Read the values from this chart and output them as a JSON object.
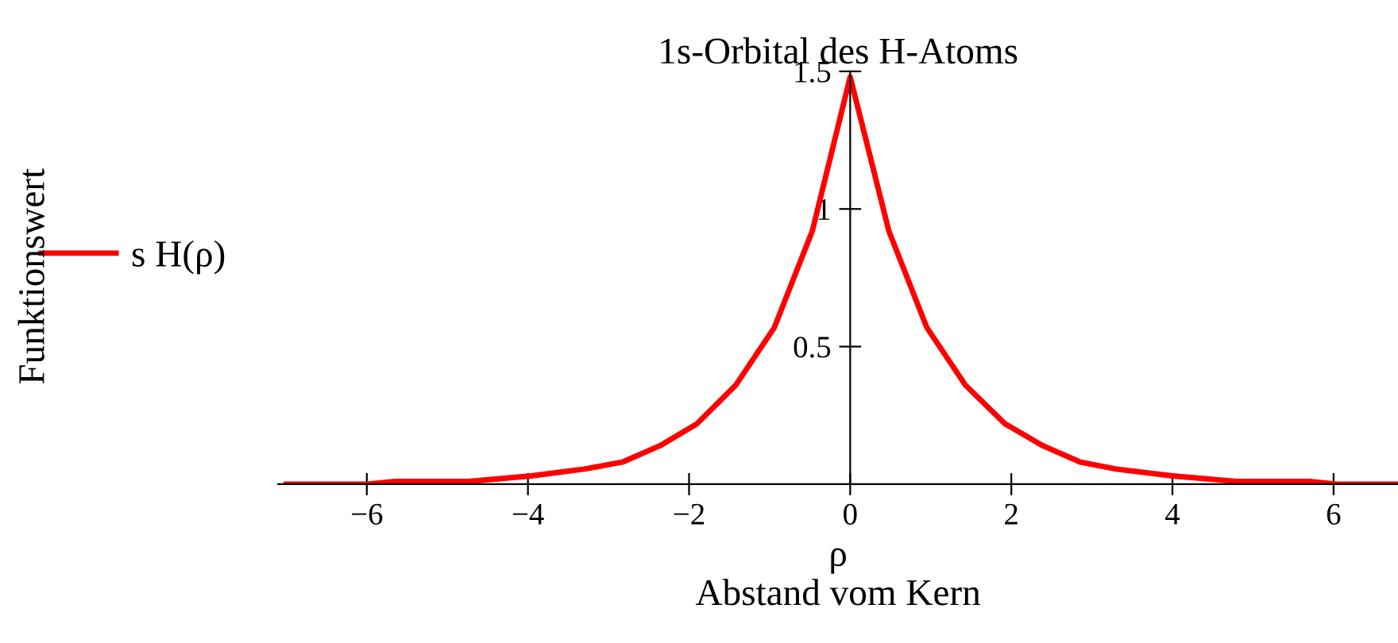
{
  "chart_data": {
    "type": "line",
    "title": "1s-Orbital des H-Atoms",
    "xlabel": "ρ\nAbstand vom Kern",
    "annotations": [
      "Funktionswert"
    ],
    "x": [
      -7.0,
      -6.0,
      -5.65,
      -4.74,
      -3.96,
      -3.3,
      -2.83,
      -2.36,
      -1.9,
      -1.42,
      -0.94,
      -0.47,
      0,
      0.48,
      0.95,
      1.43,
      1.92,
      2.39,
      2.86,
      3.3,
      4.0,
      4.8,
      5.7,
      6.04,
      6.8
    ],
    "series": [
      {
        "name": "s H(ρ)",
        "color": "#ff0000",
        "values": [
          0,
          0,
          0.01,
          0.01,
          0.03,
          0.055,
          0.08,
          0.14,
          0.22,
          0.36,
          0.57,
          0.92,
          1.48,
          0.92,
          0.57,
          0.36,
          0.22,
          0.14,
          0.08,
          0.055,
          0.03,
          0.01,
          0.01,
          0,
          0
        ]
      }
    ],
    "xlim": [
      -7.1,
      6.8
    ],
    "ylim": [
      0,
      1.5
    ],
    "xticks": [
      -6,
      -4,
      -2,
      0,
      2,
      4,
      6
    ],
    "yticks": [
      0.5,
      1,
      1.5
    ],
    "legend": "left",
    "grid": false,
    "marker": "none",
    "line_style": "solid"
  }
}
